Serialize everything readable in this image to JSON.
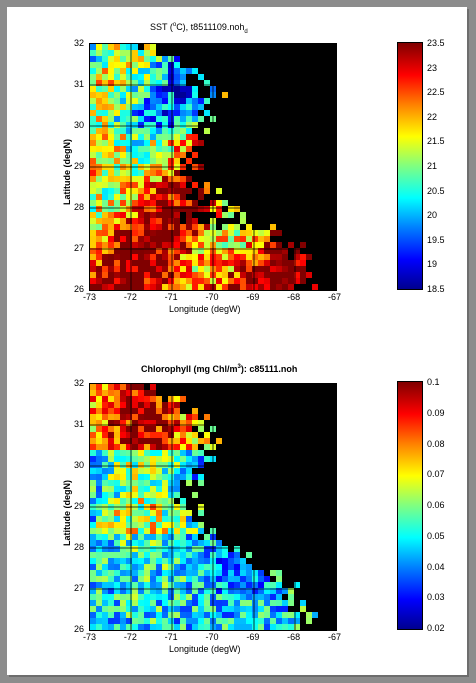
{
  "sst_panel": {
    "title_main": "SST (",
    "title_deg": "o",
    "title_rest": "C), t8511109.noh",
    "title_sub": "d",
    "xlabel": "Longitude (degW)",
    "ylabel": "Latitude (degN)",
    "x_ticks": [
      "-73",
      "-72",
      "-71",
      "-70",
      "-69",
      "-68",
      "-67"
    ],
    "y_ticks": [
      "32",
      "31",
      "30",
      "29",
      "28",
      "27",
      "26"
    ],
    "colorbar_ticks": [
      "23.5",
      "23",
      "22.5",
      "22",
      "21.5",
      "21",
      "20.5",
      "20",
      "19.5",
      "19",
      "18.5"
    ]
  },
  "chl_panel": {
    "title_main": "Chlorophyll (mg Chl/m",
    "title_sup": "3",
    "title_rest": "): c85111.noh",
    "xlabel": "Longitude (degW)",
    "ylabel": "Latitude (degN)",
    "x_ticks": [
      "-73",
      "-72",
      "-71",
      "-70",
      "-69",
      "-68",
      "-67"
    ],
    "y_ticks": [
      "32",
      "31",
      "30",
      "29",
      "28",
      "27",
      "26"
    ],
    "colorbar_ticks": [
      "0.1",
      "0.09",
      "0.08",
      "0.07",
      "0.06",
      "0.05",
      "0.04",
      "0.03",
      "0.02"
    ]
  },
  "colors": {
    "land": "#000000",
    "jet_low": "#00008f",
    "jet_high": "#800000"
  }
}
